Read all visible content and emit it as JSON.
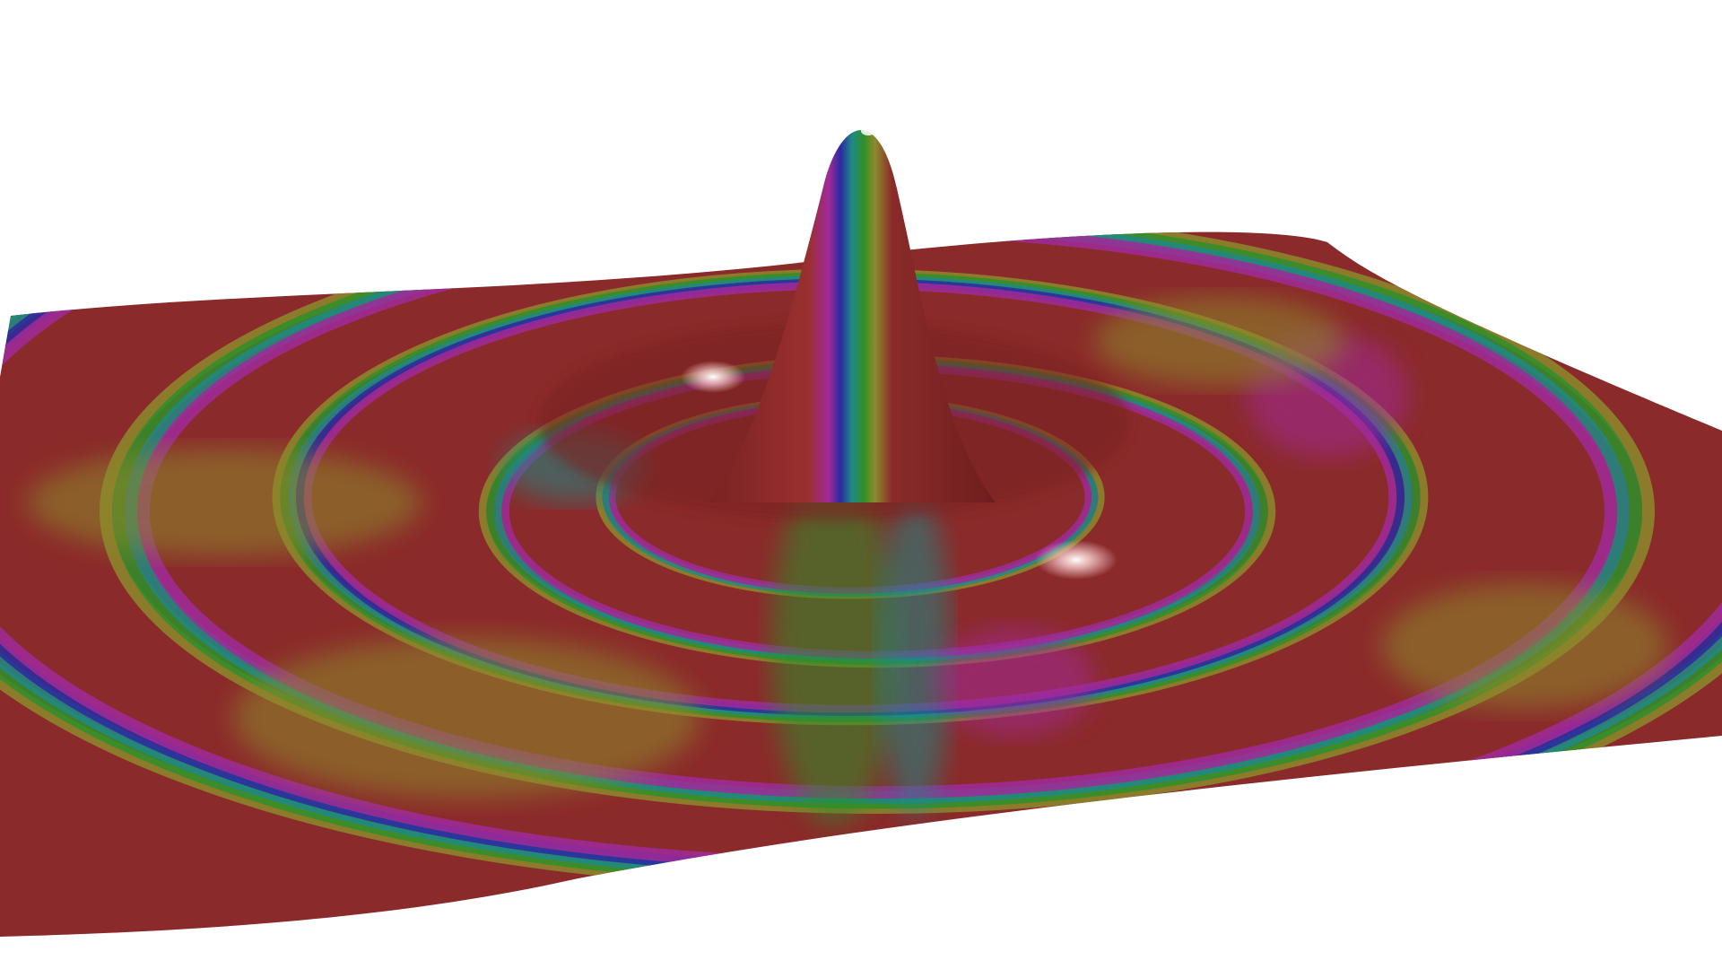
{
  "scene": {
    "background": "#ffffff",
    "subject": "surface-plot",
    "colormap": "hue-rainbow",
    "palette": {
      "red": "#8b2a2a",
      "olive": "#8c8a2c",
      "green": "#2f8f2a",
      "teal": "#1f8a86",
      "blue": "#2a2aa0",
      "magenta": "#a02a9a",
      "highlight": "#f5c8c8"
    }
  }
}
